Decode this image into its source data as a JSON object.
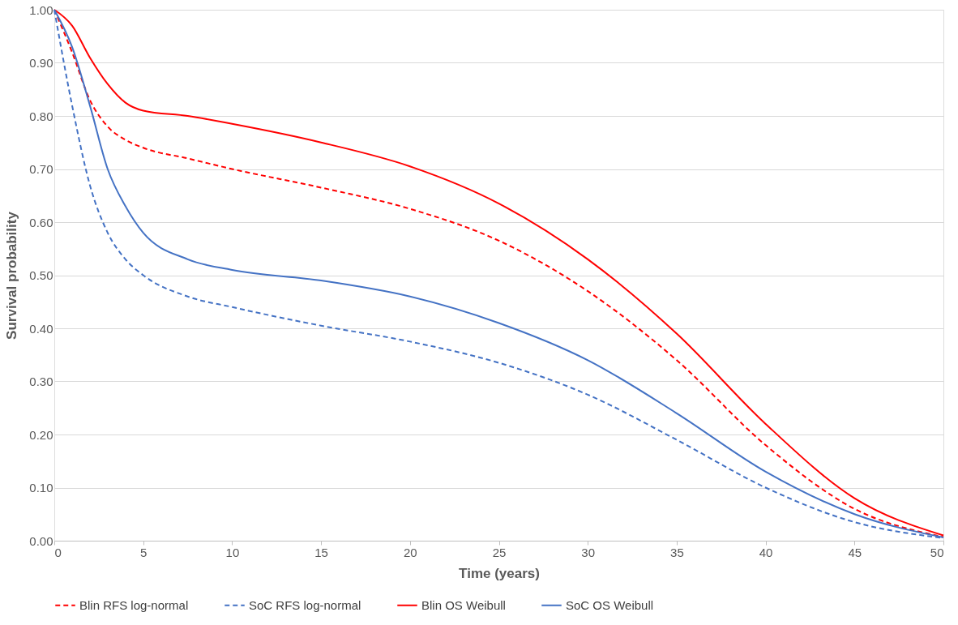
{
  "chart_data": {
    "type": "line",
    "xlabel": "Time (years)",
    "ylabel": "Survival probability",
    "x": [
      0,
      1,
      2,
      3,
      4,
      5,
      7.5,
      10,
      15,
      20,
      25,
      30,
      35,
      40,
      45,
      50
    ],
    "series": [
      {
        "name": "Blin RFS log-normal",
        "color": "#ff0000",
        "line_style": "dashed",
        "values": [
          1.0,
          0.92,
          0.83,
          0.78,
          0.755,
          0.74,
          0.72,
          0.7,
          0.665,
          0.625,
          0.565,
          0.47,
          0.34,
          0.18,
          0.06,
          0.007
        ]
      },
      {
        "name": "SoC RFS log-normal",
        "color": "#4472c4",
        "line_style": "dashed",
        "values": [
          1.0,
          0.82,
          0.67,
          0.58,
          0.53,
          0.5,
          0.46,
          0.44,
          0.405,
          0.375,
          0.335,
          0.275,
          0.19,
          0.1,
          0.035,
          0.005
        ]
      },
      {
        "name": "Blin OS Weibull",
        "color": "#ff0000",
        "line_style": "solid",
        "values": [
          1.0,
          0.97,
          0.91,
          0.86,
          0.825,
          0.81,
          0.8,
          0.785,
          0.75,
          0.705,
          0.635,
          0.53,
          0.39,
          0.22,
          0.08,
          0.01
        ]
      },
      {
        "name": "SoC OS Weibull",
        "color": "#4472c4",
        "line_style": "solid",
        "values": [
          1.0,
          0.93,
          0.82,
          0.7,
          0.63,
          0.58,
          0.53,
          0.51,
          0.49,
          0.46,
          0.41,
          0.34,
          0.24,
          0.13,
          0.05,
          0.006
        ]
      }
    ],
    "xlim": [
      0,
      50
    ],
    "xticks": [
      0,
      5,
      10,
      15,
      20,
      25,
      30,
      35,
      40,
      45,
      50
    ],
    "ylim": [
      0,
      1
    ],
    "yticks": [
      {
        "value": 0,
        "label": "0.00"
      },
      {
        "value": 0.1,
        "label": "0.10"
      },
      {
        "value": 0.2,
        "label": "0.20"
      },
      {
        "value": 0.3,
        "label": "0.30"
      },
      {
        "value": 0.4,
        "label": "0.40"
      },
      {
        "value": 0.5,
        "label": "0.50"
      },
      {
        "value": 0.6,
        "label": "0.60"
      },
      {
        "value": 0.7,
        "label": "0.70"
      },
      {
        "value": 0.8,
        "label": "0.80"
      },
      {
        "value": 0.9,
        "label": "0.90"
      },
      {
        "value": 1,
        "label": "1.00"
      }
    ],
    "grid": "y",
    "legend": "bottom",
    "marker": "none"
  }
}
